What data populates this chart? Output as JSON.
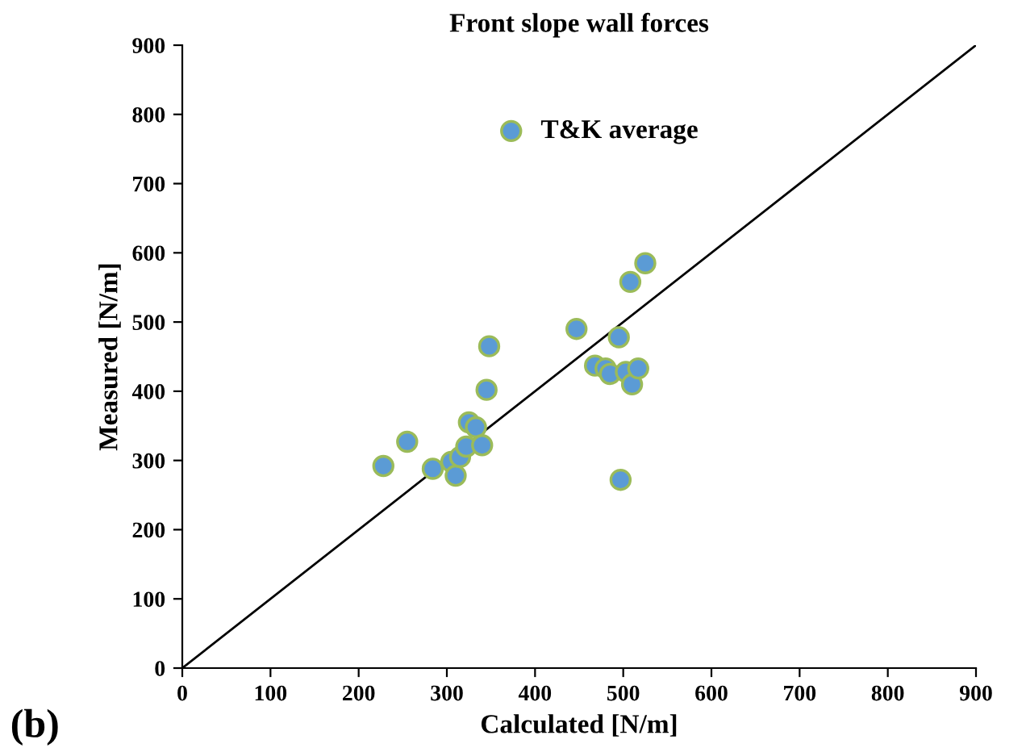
{
  "chart_data": {
    "type": "scatter",
    "title": "Front slope wall forces",
    "xlabel": "Calculated [N/m]",
    "ylabel": "Measured [N/m]",
    "annotations": [
      "(b)"
    ],
    "xlim": [
      0,
      900
    ],
    "ylim": [
      0,
      900
    ],
    "xticks": [
      0,
      100,
      200,
      300,
      400,
      500,
      600,
      700,
      800,
      900
    ],
    "yticks": [
      0,
      100,
      200,
      300,
      400,
      500,
      600,
      700,
      800,
      900
    ],
    "grid": false,
    "legend": "top left",
    "marker": "circle",
    "series": [
      {
        "name": "T&K average",
        "color": "#5b9bd5",
        "x": [
          228,
          255,
          284,
          305,
          310,
          315,
          322,
          325,
          333,
          340,
          345,
          348,
          447,
          468,
          480,
          485,
          495,
          497,
          503,
          508,
          510,
          517,
          525
        ],
        "values": [
          292,
          327,
          288,
          298,
          278,
          305,
          320,
          355,
          348,
          322,
          402,
          465,
          490,
          437,
          433,
          425,
          478,
          272,
          428,
          558,
          410,
          433,
          585
        ]
      },
      {
        "type": "line",
        "color": "#000000",
        "line_style": "solid",
        "marker": "none",
        "x": [
          0,
          900
        ],
        "values": [
          0,
          900
        ]
      }
    ]
  }
}
